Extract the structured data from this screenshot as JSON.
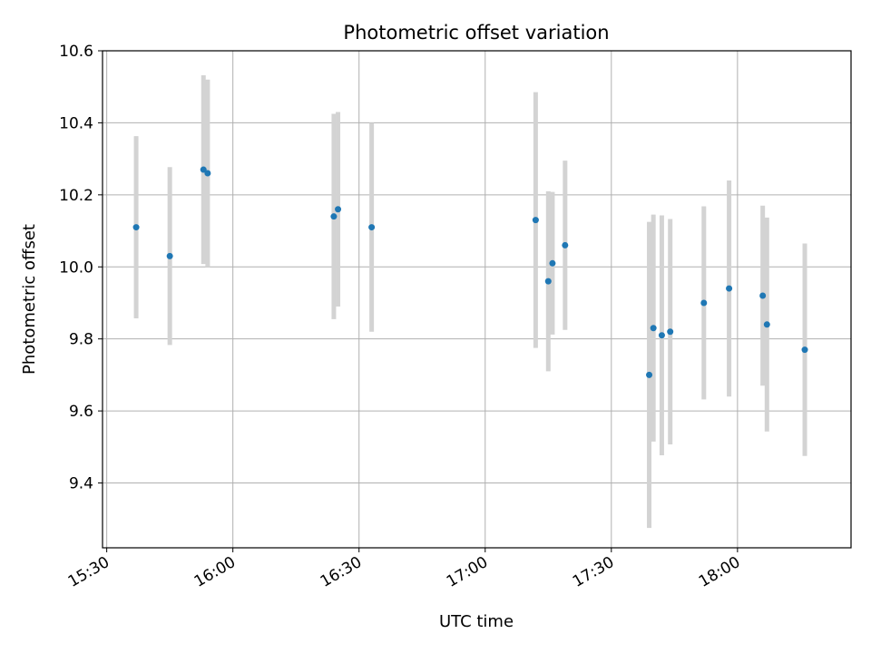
{
  "chart_data": {
    "type": "scatter",
    "title": "Photometric offset variation",
    "xlabel": "UTC time",
    "ylabel": "Photometric offset",
    "xlim": [
      "15:29",
      "18:27"
    ],
    "ylim": [
      9.22,
      10.6
    ],
    "xticks": [
      "15:30",
      "16:00",
      "16:30",
      "17:00",
      "17:30",
      "18:00"
    ],
    "yticks": [
      "9.4",
      "9.6",
      "9.8",
      "10.0",
      "10.2",
      "10.4",
      "10.6"
    ],
    "grid": true,
    "colors": {
      "point": "#1f77b4",
      "errorbar": "#d3d3d3",
      "grid": "#b0b0b0"
    },
    "series": [
      {
        "points": [
          {
            "x": "15:37",
            "y": 10.11,
            "err": 0.253
          },
          {
            "x": "15:45",
            "y": 10.03,
            "err": 0.247
          },
          {
            "x": "15:53",
            "y": 10.27,
            "err": 0.262
          },
          {
            "x": "15:54",
            "y": 10.26,
            "err": 0.26
          },
          {
            "x": "16:24",
            "y": 10.14,
            "err": 0.285
          },
          {
            "x": "16:25",
            "y": 10.16,
            "err": 0.27
          },
          {
            "x": "16:33",
            "y": 10.11,
            "err": 0.29
          },
          {
            "x": "17:12",
            "y": 10.13,
            "err": 0.355
          },
          {
            "x": "17:15",
            "y": 9.96,
            "err": 0.25
          },
          {
            "x": "17:16",
            "y": 10.01,
            "err": 0.198
          },
          {
            "x": "17:19",
            "y": 10.06,
            "err": 0.235
          },
          {
            "x": "17:39",
            "y": 9.7,
            "err": 0.425
          },
          {
            "x": "17:40",
            "y": 9.83,
            "err": 0.315
          },
          {
            "x": "17:42",
            "y": 9.81,
            "err": 0.333
          },
          {
            "x": "17:44",
            "y": 9.82,
            "err": 0.313
          },
          {
            "x": "17:52",
            "y": 9.9,
            "err": 0.268
          },
          {
            "x": "17:58",
            "y": 9.94,
            "err": 0.3
          },
          {
            "x": "18:06",
            "y": 9.92,
            "err": 0.25
          },
          {
            "x": "18:07",
            "y": 9.84,
            "err": 0.297
          },
          {
            "x": "18:16",
            "y": 9.77,
            "err": 0.295
          }
        ]
      }
    ]
  }
}
